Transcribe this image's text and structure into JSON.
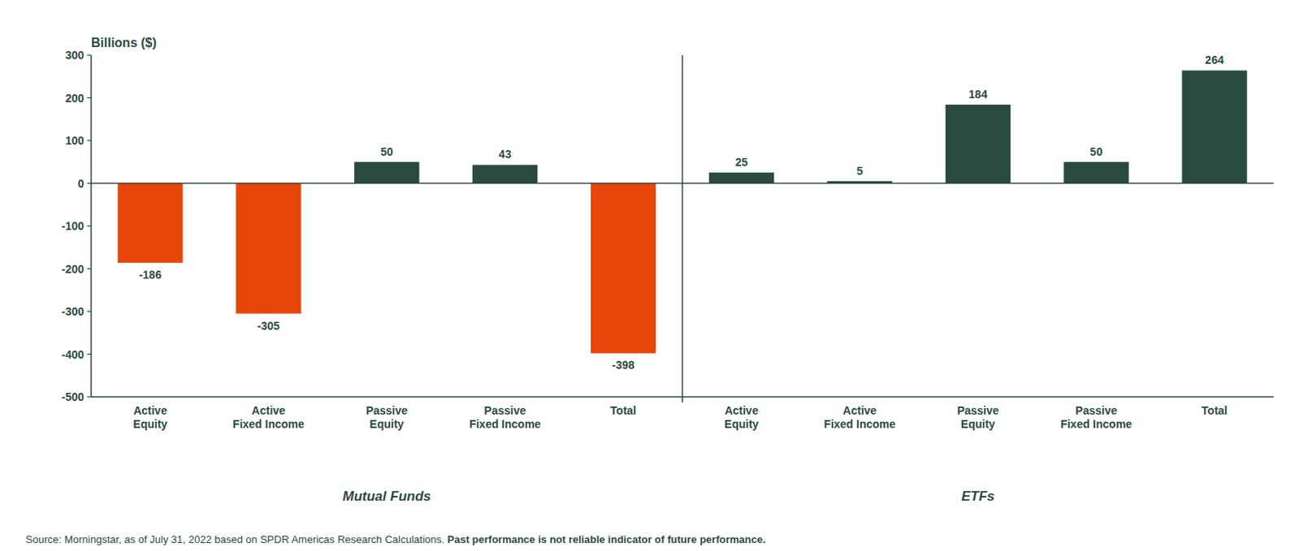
{
  "chart_data": [
    {
      "type": "bar",
      "xlabel": "Mutual Funds",
      "ylabel": "Billions ($)",
      "categories": [
        "Active\nEquity",
        "Active\nFixed Income",
        "Passive\nEquity",
        "Passive\nFixed Income",
        "Total"
      ],
      "values": [
        -186,
        -305,
        50,
        43,
        -398
      ],
      "colors": [
        "#E8450A",
        "#E8450A",
        "#2B4A3F",
        "#2B4A3F",
        "#E8450A"
      ],
      "ylim": [
        -500,
        300
      ],
      "yticks": [
        -500,
        -400,
        -300,
        -200,
        -100,
        0,
        100,
        200,
        300
      ],
      "grid": false,
      "data_labels": true,
      "annotations": [
        "Source: Morningstar, as of July 31, 2022 based on SPDR Americas Research Calculations. ",
        "Past performance is not reliable indicator of future performance."
      ]
    },
    {
      "type": "bar",
      "xlabel": "ETFs",
      "categories": [
        "Active\nEquity",
        "Active\nFixed Income",
        "Passive\nEquity",
        "Passive\nFixed Income",
        "Total"
      ],
      "values": [
        25,
        5,
        184,
        50,
        264
      ],
      "colors": [
        "#2B4A3F",
        "#2B4A3F",
        "#2B4A3F",
        "#2B4A3F",
        "#2B4A3F"
      ],
      "ylim": [
        -500,
        300
      ],
      "grid": false,
      "data_labels": true,
      "tick_labels": "x"
    }
  ]
}
